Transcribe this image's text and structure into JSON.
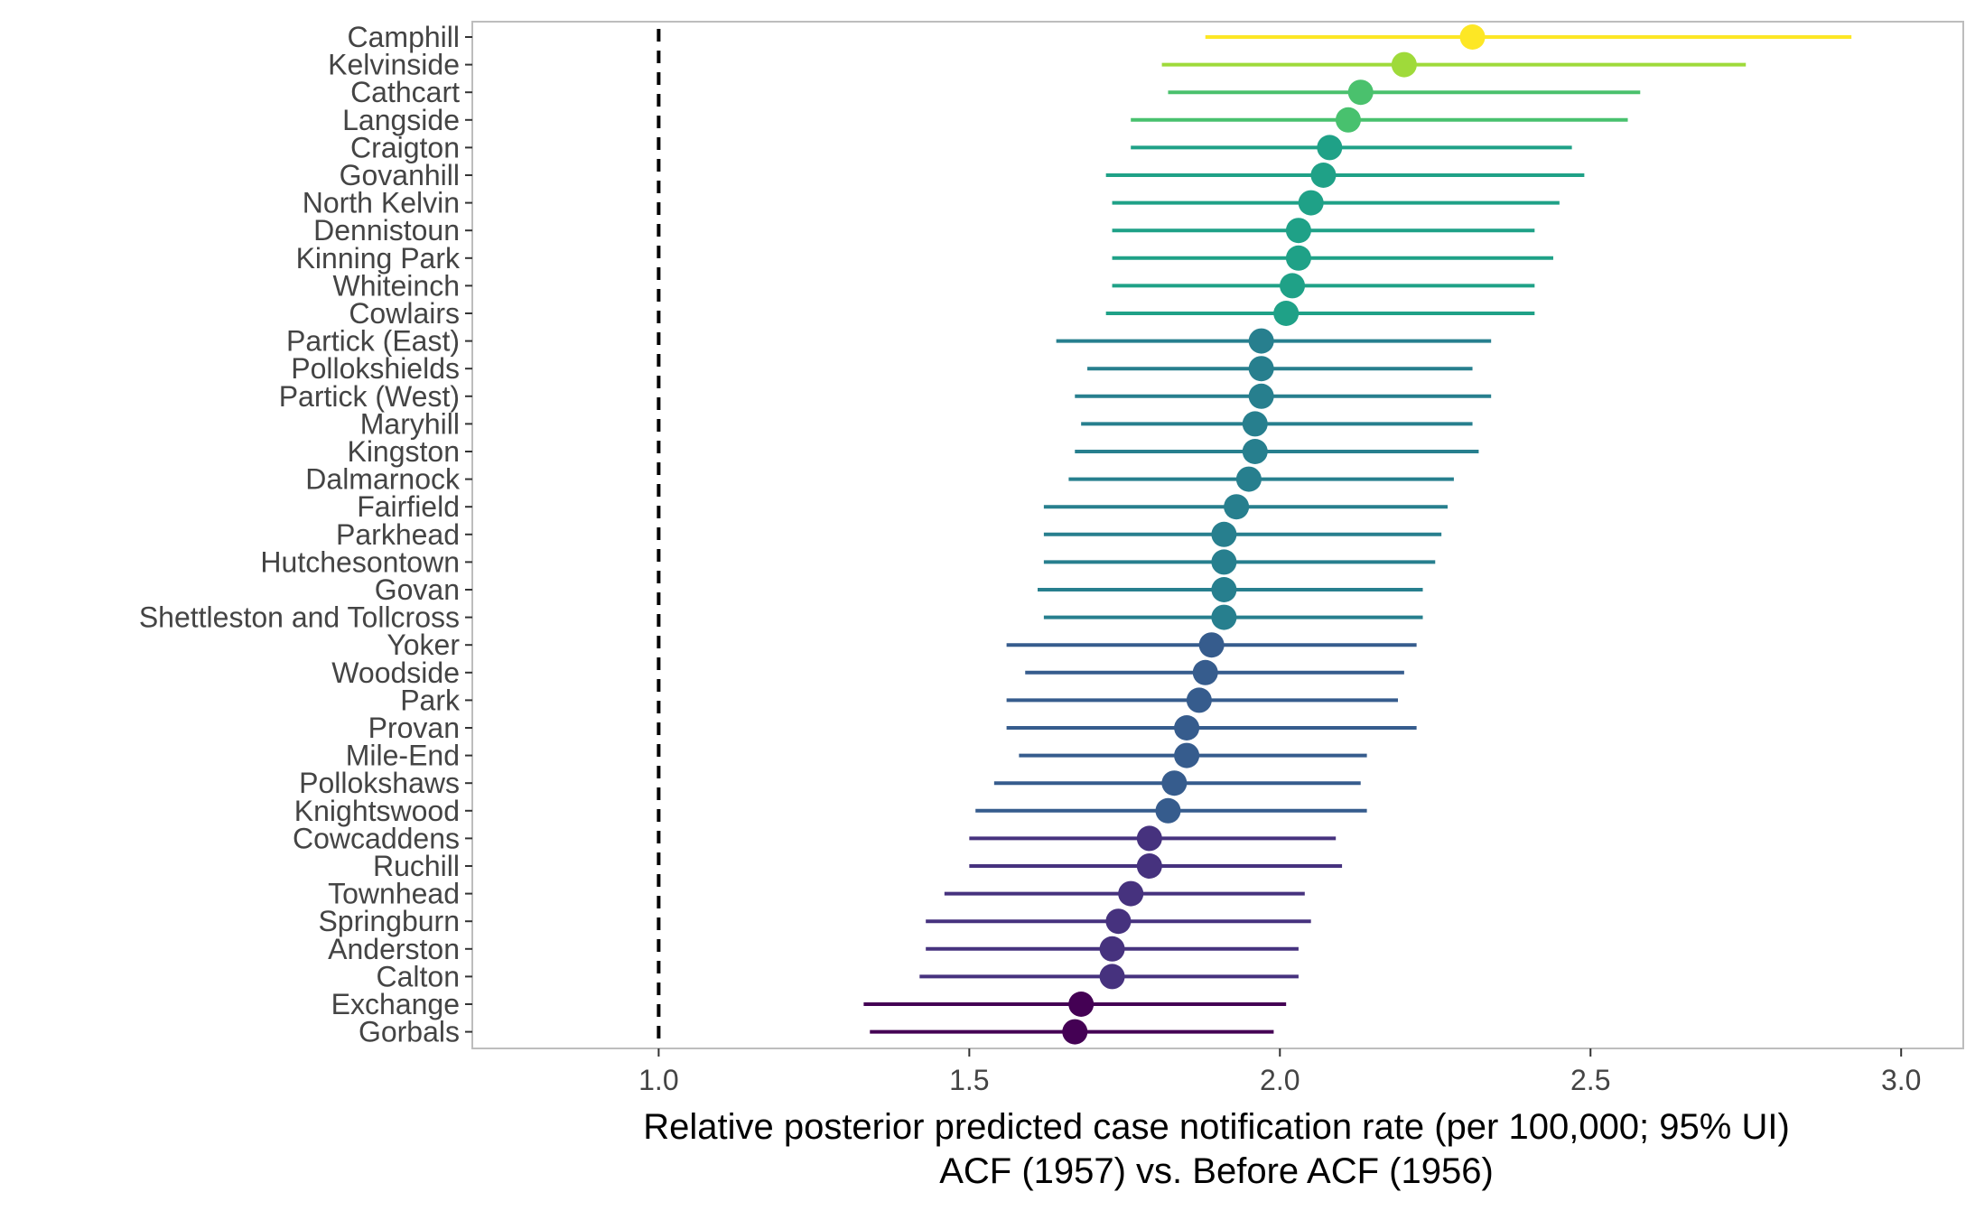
{
  "chart_data": {
    "type": "scatter",
    "subtype": "forest-plot",
    "xlabel_lines": [
      "Relative posterior predicted case notification rate (per 100,000; 95% UI)",
      "ACF (1957) vs. Before ACF (1956)"
    ],
    "ylabel": "",
    "xlim": [
      0.7,
      3.1
    ],
    "x_ticks": [
      "1.0",
      "1.5",
      "2.0",
      "2.5",
      "3.0"
    ],
    "reference_line": {
      "x": 1.0,
      "style": "dashed",
      "color": "#000000"
    },
    "grid": false,
    "legend": "none",
    "color_scale": "viridis",
    "rows": [
      {
        "name": "Camphill",
        "estimate": 2.31,
        "lower": 1.88,
        "upper": 2.92,
        "color": "#fde725"
      },
      {
        "name": "Kelvinside",
        "estimate": 2.2,
        "lower": 1.81,
        "upper": 2.75,
        "color": "#9fda3a"
      },
      {
        "name": "Cathcart",
        "estimate": 2.13,
        "lower": 1.82,
        "upper": 2.58,
        "color": "#4ac16d"
      },
      {
        "name": "Langside",
        "estimate": 2.11,
        "lower": 1.76,
        "upper": 2.56,
        "color": "#48c16e"
      },
      {
        "name": "Craigton",
        "estimate": 2.08,
        "lower": 1.76,
        "upper": 2.47,
        "color": "#1fa187"
      },
      {
        "name": "Govanhill",
        "estimate": 2.07,
        "lower": 1.72,
        "upper": 2.49,
        "color": "#1fa187"
      },
      {
        "name": "North Kelvin",
        "estimate": 2.05,
        "lower": 1.73,
        "upper": 2.45,
        "color": "#1fa187"
      },
      {
        "name": "Dennistoun",
        "estimate": 2.03,
        "lower": 1.73,
        "upper": 2.41,
        "color": "#1fa187"
      },
      {
        "name": "Kinning Park",
        "estimate": 2.03,
        "lower": 1.73,
        "upper": 2.44,
        "color": "#1fa187"
      },
      {
        "name": "Whiteinch",
        "estimate": 2.02,
        "lower": 1.73,
        "upper": 2.41,
        "color": "#1fa187"
      },
      {
        "name": "Cowlairs",
        "estimate": 2.01,
        "lower": 1.72,
        "upper": 2.41,
        "color": "#1fa187"
      },
      {
        "name": "Partick (East)",
        "estimate": 1.97,
        "lower": 1.64,
        "upper": 2.34,
        "color": "#277f8e"
      },
      {
        "name": "Pollokshields",
        "estimate": 1.97,
        "lower": 1.69,
        "upper": 2.31,
        "color": "#277f8e"
      },
      {
        "name": "Partick (West)",
        "estimate": 1.97,
        "lower": 1.67,
        "upper": 2.34,
        "color": "#277f8e"
      },
      {
        "name": "Maryhill",
        "estimate": 1.96,
        "lower": 1.68,
        "upper": 2.31,
        "color": "#277f8e"
      },
      {
        "name": "Kingston",
        "estimate": 1.96,
        "lower": 1.67,
        "upper": 2.32,
        "color": "#277f8e"
      },
      {
        "name": "Dalmarnock",
        "estimate": 1.95,
        "lower": 1.66,
        "upper": 2.28,
        "color": "#277f8e"
      },
      {
        "name": "Fairfield",
        "estimate": 1.93,
        "lower": 1.62,
        "upper": 2.27,
        "color": "#277f8e"
      },
      {
        "name": "Parkhead",
        "estimate": 1.91,
        "lower": 1.62,
        "upper": 2.26,
        "color": "#277f8e"
      },
      {
        "name": "Hutchesontown",
        "estimate": 1.91,
        "lower": 1.62,
        "upper": 2.25,
        "color": "#277f8e"
      },
      {
        "name": "Govan",
        "estimate": 1.91,
        "lower": 1.61,
        "upper": 2.23,
        "color": "#277f8e"
      },
      {
        "name": "Shettleston and Tollcross",
        "estimate": 1.91,
        "lower": 1.62,
        "upper": 2.23,
        "color": "#277f8e"
      },
      {
        "name": "Yoker",
        "estimate": 1.89,
        "lower": 1.56,
        "upper": 2.22,
        "color": "#365c8d"
      },
      {
        "name": "Woodside",
        "estimate": 1.88,
        "lower": 1.59,
        "upper": 2.2,
        "color": "#365c8d"
      },
      {
        "name": "Park",
        "estimate": 1.87,
        "lower": 1.56,
        "upper": 2.19,
        "color": "#365c8d"
      },
      {
        "name": "Provan",
        "estimate": 1.85,
        "lower": 1.56,
        "upper": 2.22,
        "color": "#365c8d"
      },
      {
        "name": "Mile-End",
        "estimate": 1.85,
        "lower": 1.58,
        "upper": 2.14,
        "color": "#365c8d"
      },
      {
        "name": "Pollokshaws",
        "estimate": 1.83,
        "lower": 1.54,
        "upper": 2.13,
        "color": "#365c8d"
      },
      {
        "name": "Knightswood",
        "estimate": 1.82,
        "lower": 1.51,
        "upper": 2.14,
        "color": "#365c8d"
      },
      {
        "name": "Cowcaddens",
        "estimate": 1.79,
        "lower": 1.5,
        "upper": 2.09,
        "color": "#46327e"
      },
      {
        "name": "Ruchill",
        "estimate": 1.79,
        "lower": 1.5,
        "upper": 2.1,
        "color": "#46327e"
      },
      {
        "name": "Townhead",
        "estimate": 1.76,
        "lower": 1.46,
        "upper": 2.04,
        "color": "#46327e"
      },
      {
        "name": "Springburn",
        "estimate": 1.74,
        "lower": 1.43,
        "upper": 2.05,
        "color": "#46327e"
      },
      {
        "name": "Anderston",
        "estimate": 1.73,
        "lower": 1.43,
        "upper": 2.03,
        "color": "#46327e"
      },
      {
        "name": "Calton",
        "estimate": 1.73,
        "lower": 1.42,
        "upper": 2.03,
        "color": "#46327e"
      },
      {
        "name": "Exchange",
        "estimate": 1.68,
        "lower": 1.33,
        "upper": 2.01,
        "color": "#440154"
      },
      {
        "name": "Gorbals",
        "estimate": 1.67,
        "lower": 1.34,
        "upper": 1.99,
        "color": "#440154"
      }
    ]
  }
}
